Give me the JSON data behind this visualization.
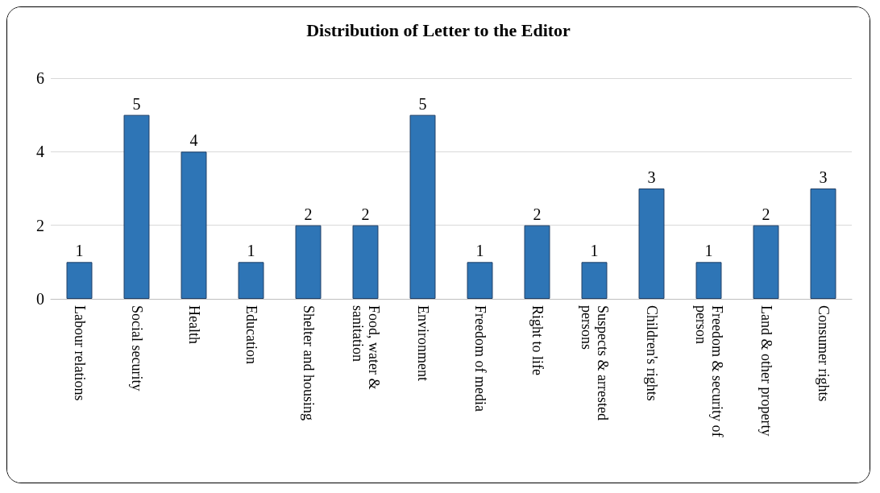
{
  "chart_data": {
    "type": "bar",
    "title": "Distribution of Letter to the Editor",
    "categories": [
      "Labour relations",
      "Social security",
      "Health",
      "Education",
      "Shelter and housing",
      "Food, water & sanitation",
      "Environment",
      "Freedom of media",
      "Right to life",
      "Suspects & arrested persons",
      "Children's rights",
      "Freedom & security of person",
      "Land & other property",
      "Consumer rights"
    ],
    "values": [
      1,
      5,
      4,
      1,
      2,
      2,
      5,
      1,
      2,
      1,
      3,
      1,
      2,
      3
    ],
    "color": "#2e75b6",
    "ylim": [
      0,
      6
    ],
    "yticks": [
      0,
      2,
      4,
      6
    ],
    "grid": "y",
    "data_labels": true
  }
}
